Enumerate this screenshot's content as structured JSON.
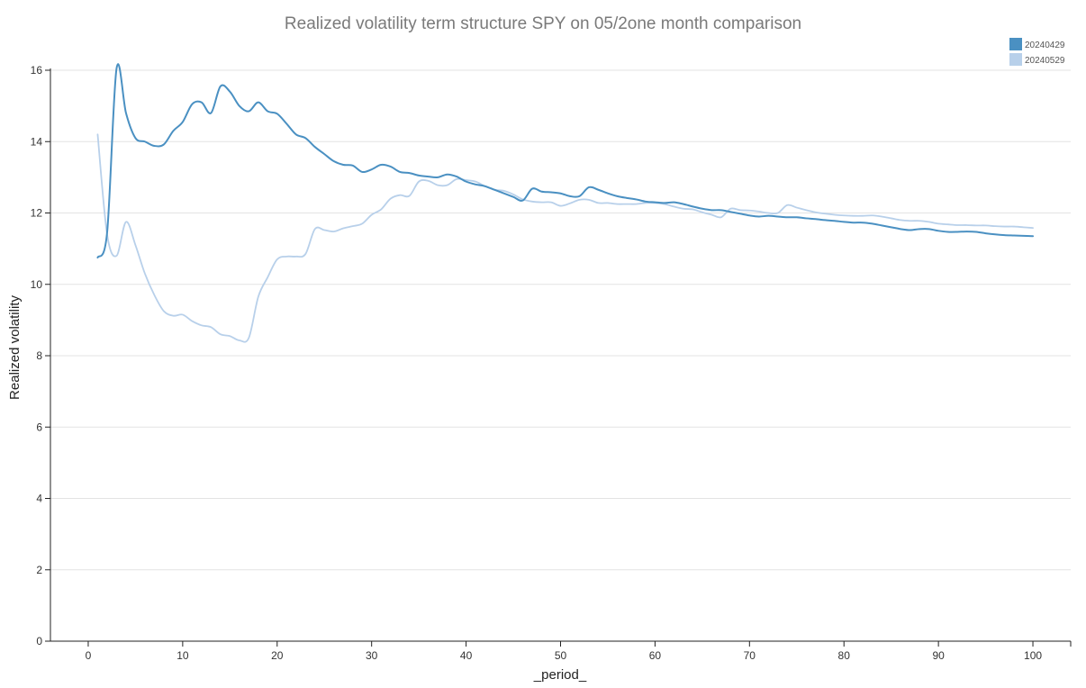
{
  "chart_data": {
    "type": "line",
    "title": "Realized volatility term structure SPY on 05/2one month comparison",
    "xlabel": "_period_",
    "ylabel": "Realized volatility",
    "xlim": [
      -4,
      104
    ],
    "ylim": [
      0,
      16
    ],
    "xticks": [
      0,
      10,
      20,
      30,
      40,
      50,
      60,
      70,
      80,
      90,
      100
    ],
    "yticks": [
      0,
      2,
      4,
      6,
      8,
      10,
      12,
      14,
      16
    ],
    "grid": "horizontal",
    "legend": "top-right",
    "series": [
      {
        "name": "20240429",
        "color": "#4a90c2",
        "x": [
          1,
          2,
          3,
          4,
          5,
          6,
          7,
          8,
          9,
          10,
          11,
          12,
          13,
          14,
          15,
          16,
          17,
          18,
          19,
          20,
          21,
          22,
          23,
          24,
          25,
          26,
          27,
          28,
          29,
          30,
          31,
          32,
          33,
          34,
          35,
          36,
          37,
          38,
          39,
          40,
          41,
          42,
          43,
          44,
          45,
          46,
          47,
          48,
          49,
          50,
          51,
          52,
          53,
          54,
          55,
          56,
          57,
          58,
          59,
          60,
          61,
          62,
          63,
          64,
          65,
          66,
          67,
          68,
          69,
          70,
          71,
          72,
          73,
          74,
          75,
          76,
          77,
          78,
          79,
          80,
          81,
          82,
          83,
          84,
          85,
          86,
          87,
          88,
          89,
          90,
          91,
          92,
          93,
          94,
          95,
          96,
          97,
          98,
          99,
          100
        ],
        "y": [
          10.75,
          11.45,
          16.05,
          14.8,
          14.1,
          14.0,
          13.88,
          13.92,
          14.3,
          14.55,
          15.05,
          15.1,
          14.8,
          15.55,
          15.4,
          15.0,
          14.85,
          15.1,
          14.85,
          14.78,
          14.5,
          14.2,
          14.1,
          13.85,
          13.65,
          13.45,
          13.35,
          13.33,
          13.15,
          13.22,
          13.35,
          13.3,
          13.15,
          13.12,
          13.05,
          13.02,
          13.0,
          13.08,
          13.02,
          12.88,
          12.8,
          12.75,
          12.65,
          12.55,
          12.45,
          12.35,
          12.68,
          12.6,
          12.58,
          12.55,
          12.47,
          12.47,
          12.72,
          12.65,
          12.55,
          12.47,
          12.42,
          12.38,
          12.32,
          12.3,
          12.28,
          12.3,
          12.25,
          12.18,
          12.12,
          12.08,
          12.08,
          12.03,
          11.98,
          11.93,
          11.9,
          11.92,
          11.9,
          11.88,
          11.88,
          11.85,
          11.83,
          11.8,
          11.78,
          11.75,
          11.73,
          11.73,
          11.7,
          11.65,
          11.6,
          11.55,
          11.52,
          11.55,
          11.55,
          11.5,
          11.47,
          11.47,
          11.48,
          11.47,
          11.43,
          11.4,
          11.38,
          11.37,
          11.36,
          11.35
        ]
      },
      {
        "name": "20240529",
        "color": "#b8d0ea",
        "x": [
          1,
          2,
          3,
          4,
          5,
          6,
          7,
          8,
          9,
          10,
          11,
          12,
          13,
          14,
          15,
          16,
          17,
          18,
          19,
          20,
          21,
          22,
          23,
          24,
          25,
          26,
          27,
          28,
          29,
          30,
          31,
          32,
          33,
          34,
          35,
          36,
          37,
          38,
          39,
          40,
          41,
          42,
          43,
          44,
          45,
          46,
          47,
          48,
          49,
          50,
          51,
          52,
          53,
          54,
          55,
          56,
          57,
          58,
          59,
          60,
          61,
          62,
          63,
          64,
          65,
          66,
          67,
          68,
          69,
          70,
          71,
          72,
          73,
          74,
          75,
          76,
          77,
          78,
          79,
          80,
          81,
          82,
          83,
          84,
          85,
          86,
          87,
          88,
          89,
          90,
          91,
          92,
          93,
          94,
          95,
          96,
          97,
          98,
          99,
          100
        ],
        "y": [
          14.2,
          11.4,
          10.8,
          11.75,
          11.1,
          10.3,
          9.7,
          9.25,
          9.12,
          9.15,
          8.97,
          8.85,
          8.8,
          8.6,
          8.55,
          8.43,
          8.5,
          9.65,
          10.2,
          10.7,
          10.78,
          10.78,
          10.85,
          11.55,
          11.52,
          11.48,
          11.57,
          11.63,
          11.7,
          11.95,
          12.1,
          12.4,
          12.5,
          12.48,
          12.88,
          12.9,
          12.78,
          12.78,
          12.95,
          12.92,
          12.88,
          12.75,
          12.65,
          12.62,
          12.52,
          12.38,
          12.32,
          12.3,
          12.3,
          12.2,
          12.27,
          12.37,
          12.37,
          12.28,
          12.28,
          12.25,
          12.25,
          12.25,
          12.28,
          12.28,
          12.25,
          12.18,
          12.12,
          12.1,
          12.02,
          11.95,
          11.88,
          12.12,
          12.08,
          12.07,
          12.04,
          12.0,
          12.0,
          12.22,
          12.15,
          12.08,
          12.02,
          11.98,
          11.95,
          11.93,
          11.92,
          11.92,
          11.93,
          11.9,
          11.85,
          11.8,
          11.78,
          11.78,
          11.75,
          11.7,
          11.68,
          11.66,
          11.66,
          11.65,
          11.65,
          11.63,
          11.62,
          11.62,
          11.6,
          11.58
        ]
      }
    ]
  }
}
